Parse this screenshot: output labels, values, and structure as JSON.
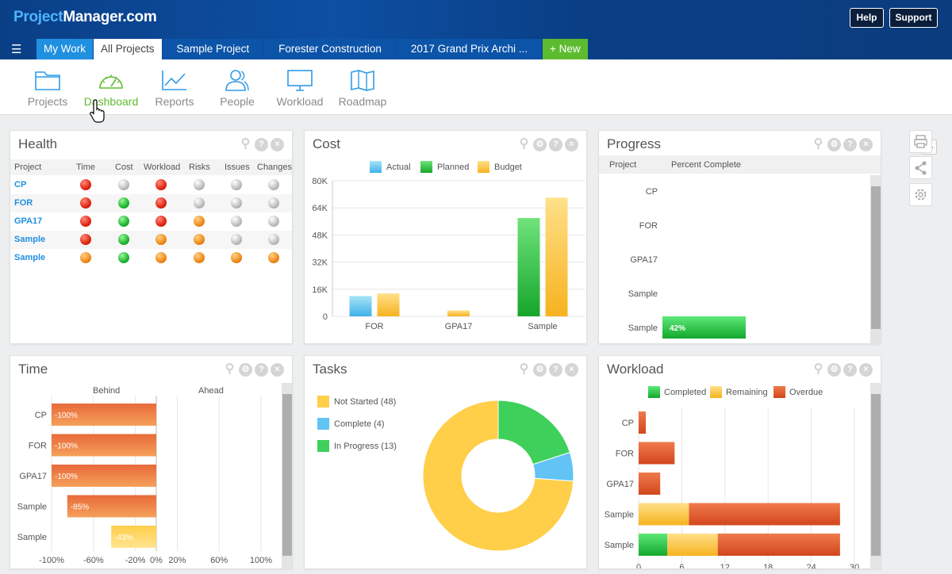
{
  "app": {
    "logo_a": "Project",
    "logo_b": "Manager.com"
  },
  "header": {
    "help": "Help",
    "support": "Support"
  },
  "tabs": [
    {
      "label": "My Work"
    },
    {
      "label": "All Projects"
    },
    {
      "label": "Sample Project"
    },
    {
      "label": "Forester Construction"
    },
    {
      "label": "2017 Grand Prix Archi ..."
    },
    {
      "label": "+ New"
    }
  ],
  "nav": [
    {
      "label": "Projects",
      "icon": "folder-icon"
    },
    {
      "label": "Dashboard",
      "icon": "gauge-icon"
    },
    {
      "label": "Reports",
      "icon": "line-chart-icon"
    },
    {
      "label": "People",
      "icon": "people-icon"
    },
    {
      "label": "Workload",
      "icon": "monitor-icon"
    },
    {
      "label": "Roadmap",
      "icon": "map-icon"
    }
  ],
  "health": {
    "title": "Health",
    "columns": [
      "Project",
      "Time",
      "Cost",
      "Workload",
      "Risks",
      "Issues",
      "Changes"
    ],
    "rows": [
      {
        "project": "CP",
        "status": [
          "red",
          "gray",
          "red",
          "gray",
          "gray",
          "gray"
        ]
      },
      {
        "project": "FOR",
        "status": [
          "red",
          "green",
          "red",
          "gray",
          "gray",
          "gray"
        ]
      },
      {
        "project": "GPA17",
        "status": [
          "red",
          "green",
          "red",
          "orange",
          "gray",
          "gray"
        ]
      },
      {
        "project": "Sample",
        "status": [
          "red",
          "green",
          "orange",
          "orange",
          "gray",
          "gray"
        ]
      },
      {
        "project": "Sample",
        "status": [
          "orange",
          "green",
          "orange",
          "orange",
          "orange",
          "orange"
        ]
      }
    ]
  },
  "cost": {
    "title": "Cost"
  },
  "progress": {
    "title": "Progress",
    "col_project": "Project",
    "col_percent": "Percent Complete"
  },
  "time": {
    "title": "Time",
    "behind": "Behind",
    "ahead": "Ahead"
  },
  "tasks": {
    "title": "Tasks"
  },
  "workload": {
    "title": "Workload"
  },
  "colors": {
    "accent": "#1f8fe0",
    "brand_green": "#5dbb2f",
    "header": "#0a3f86"
  },
  "chart_data": [
    {
      "type": "bar",
      "title": "Cost",
      "categories": [
        "FOR",
        "GPA17",
        "Sample"
      ],
      "series": [
        {
          "name": "Actual",
          "values": [
            12000,
            0,
            0
          ]
        },
        {
          "name": "Planned",
          "values": [
            0,
            0,
            58000
          ]
        },
        {
          "name": "Budget",
          "values": [
            13500,
            3500,
            70000
          ]
        }
      ],
      "ylim": [
        0,
        80000
      ],
      "yticks": [
        "0",
        "16K",
        "32K",
        "48K",
        "64K",
        "80K"
      ],
      "legend": "top-center",
      "grid": true
    },
    {
      "type": "bar",
      "title": "Progress",
      "orientation": "horizontal",
      "categories": [
        "CP",
        "FOR",
        "GPA17",
        "Sample",
        "Sample"
      ],
      "values": [
        0,
        0,
        0,
        0,
        42
      ],
      "data_labels": [
        "",
        "",
        "",
        "",
        "42%"
      ],
      "xlim": [
        0,
        100
      ]
    },
    {
      "type": "bar",
      "title": "Time",
      "orientation": "horizontal",
      "categories": [
        "CP",
        "FOR",
        "GPA17",
        "Sample",
        "Sample"
      ],
      "values": [
        -100,
        -100,
        -100,
        -85,
        -43
      ],
      "data_labels": [
        "-100%",
        "-100%",
        "-100%",
        "-85%",
        "-43%"
      ],
      "xticks": [
        "-100%",
        "-60%",
        "-20%",
        "0%",
        "20%",
        "60%",
        "100%"
      ],
      "xlim": [
        -100,
        100
      ],
      "grid": true
    },
    {
      "type": "pie",
      "title": "Tasks",
      "donut": true,
      "slices": [
        {
          "name": "Not Started",
          "label": "Not Started (48)",
          "value": 48,
          "color": "#ffcf4a"
        },
        {
          "name": "Complete",
          "label": "Complete (4)",
          "value": 4,
          "color": "#62c3f5"
        },
        {
          "name": "In Progress",
          "label": "In Progress (13)",
          "value": 13,
          "color": "#3fd05b"
        }
      ],
      "legend": "top-left"
    },
    {
      "type": "bar",
      "title": "Workload",
      "orientation": "horizontal",
      "stacked": true,
      "categories": [
        "CP",
        "FOR",
        "GPA17",
        "Sample",
        "Sample"
      ],
      "series": [
        {
          "name": "Completed",
          "values": [
            0,
            0,
            0,
            0,
            4
          ]
        },
        {
          "name": "Remaining",
          "values": [
            0,
            0,
            0,
            7,
            7
          ]
        },
        {
          "name": "Overdue",
          "values": [
            1,
            5,
            3,
            21,
            17
          ]
        }
      ],
      "xticks": [
        "0",
        "6",
        "12",
        "18",
        "24",
        "30"
      ],
      "xlim": [
        0,
        30
      ],
      "legend": "top-center",
      "grid": true
    }
  ]
}
